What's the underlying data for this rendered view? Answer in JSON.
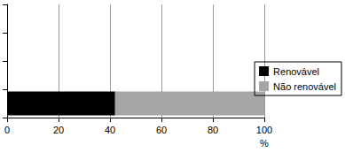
{
  "chart_data": {
    "type": "bar",
    "orientation": "horizontal",
    "stacked": true,
    "categories": [
      null,
      null,
      null,
      null
    ],
    "series": [
      {
        "name": "Renovável",
        "color": "#000000",
        "values": [
          42,
          null,
          null,
          null
        ]
      },
      {
        "name": "Não renovável",
        "color": "#a6a6a6",
        "values": [
          58,
          null,
          null,
          null
        ]
      }
    ],
    "x_label": "%",
    "xlim": [
      0,
      100
    ],
    "xticks": [
      0,
      20,
      40,
      60,
      80,
      100
    ],
    "grid": true,
    "legend": "right",
    "tick_labels": "x"
  }
}
